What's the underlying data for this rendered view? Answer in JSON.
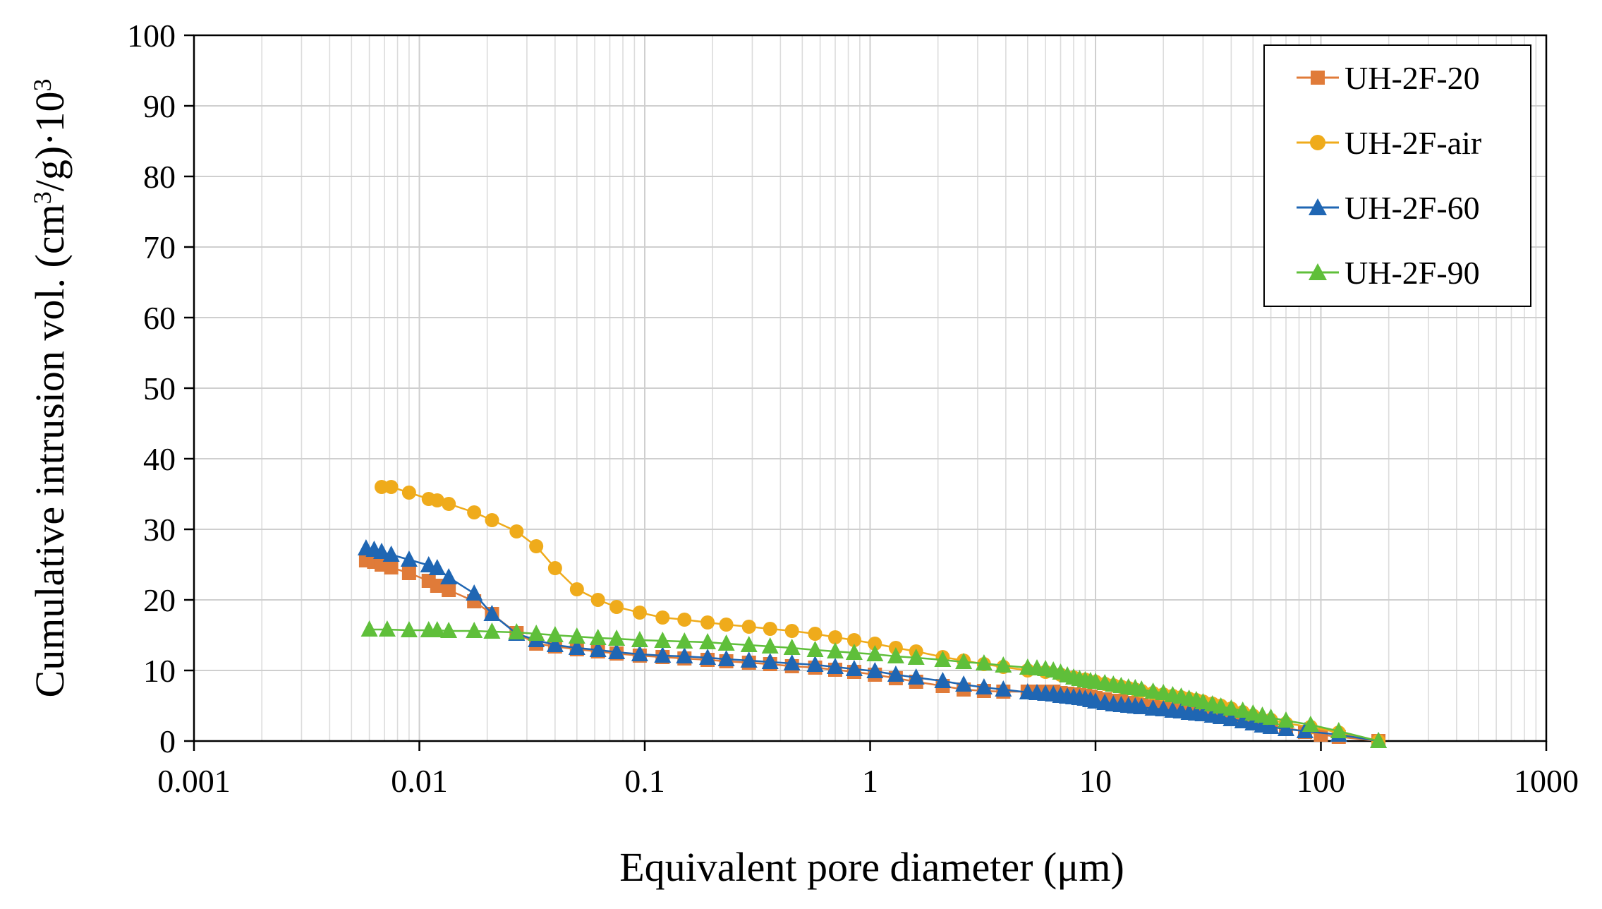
{
  "chart_data": {
    "type": "line",
    "title": "",
    "xlabel": "Equivalent pore diameter (μm)",
    "ylabel_main": "Cumulative intrusion vol. (cm",
    "ylabel_sup": "3",
    "ylabel_mid": "/g)·10",
    "ylabel_sup2": "3",
    "xscale": "log",
    "xlim": [
      0.001,
      1000
    ],
    "ylim": [
      0,
      100
    ],
    "x_ticks": [
      0.001,
      0.01,
      0.1,
      1,
      10,
      100,
      1000
    ],
    "x_tick_labels": [
      "0.001",
      "0.01",
      "0.1",
      "1",
      "10",
      "100",
      "1000"
    ],
    "y_ticks": [
      0,
      10,
      20,
      30,
      40,
      50,
      60,
      70,
      80,
      90,
      100
    ],
    "y_tick_labels": [
      "0",
      "10",
      "20",
      "30",
      "40",
      "50",
      "60",
      "70",
      "80",
      "90",
      "100"
    ],
    "grid": true,
    "legend_position": "top-right",
    "series": [
      {
        "name": "UH-2F-20",
        "color": "#e07b39",
        "marker": "square",
        "x": [
          0.0058,
          0.0063,
          0.0068,
          0.0075,
          0.009,
          0.011,
          0.012,
          0.0135,
          0.0175,
          0.021,
          0.027,
          0.033,
          0.04,
          0.05,
          0.062,
          0.075,
          0.095,
          0.12,
          0.15,
          0.19,
          0.23,
          0.29,
          0.36,
          0.45,
          0.57,
          0.7,
          0.85,
          1.05,
          1.3,
          1.6,
          2.1,
          2.6,
          3.2,
          3.9,
          5.0,
          5.5,
          6.0,
          6.5,
          7.0,
          7.5,
          8.0,
          8.5,
          9.0,
          9.5,
          10.0,
          11.0,
          12.0,
          13.0,
          14.0,
          15.0,
          16.0,
          18.0,
          20.0,
          22.0,
          24.0,
          26.0,
          28.0,
          30.0,
          33.0,
          36.0,
          40.0,
          45.0,
          50.0,
          55.0,
          60.0,
          70.0,
          85.0,
          100.0,
          120.0,
          180.0
        ],
        "y": [
          25.6,
          25.4,
          25.0,
          24.6,
          23.8,
          22.7,
          22.0,
          21.4,
          19.8,
          18.0,
          15.3,
          13.8,
          13.4,
          13.0,
          12.7,
          12.4,
          12.1,
          11.9,
          11.7,
          11.5,
          11.3,
          11.1,
          10.9,
          10.6,
          10.4,
          10.1,
          9.8,
          9.4,
          8.9,
          8.4,
          7.8,
          7.3,
          7.1,
          7.0,
          7.0,
          7.0,
          7.0,
          7.0,
          6.8,
          6.7,
          6.6,
          6.5,
          6.4,
          6.3,
          6.1,
          5.9,
          5.7,
          5.6,
          5.4,
          5.3,
          5.1,
          4.9,
          4.7,
          4.6,
          4.4,
          4.3,
          4.2,
          4.0,
          3.9,
          3.7,
          3.5,
          3.2,
          2.9,
          2.6,
          2.3,
          1.9,
          1.3,
          0.9,
          0.6,
          0.0
        ]
      },
      {
        "name": "UH-2F-air",
        "color": "#efab1b",
        "marker": "circle",
        "x": [
          0.0068,
          0.0075,
          0.009,
          0.011,
          0.012,
          0.0135,
          0.0175,
          0.021,
          0.027,
          0.033,
          0.04,
          0.05,
          0.062,
          0.075,
          0.095,
          0.12,
          0.15,
          0.19,
          0.23,
          0.29,
          0.36,
          0.45,
          0.57,
          0.7,
          0.85,
          1.05,
          1.3,
          1.6,
          2.1,
          2.6,
          3.2,
          3.9,
          5.0,
          6.0,
          7.0,
          8.0,
          9.0,
          10.0,
          11.0,
          12.0,
          13.0,
          14.0,
          15.0,
          16.0,
          18.0,
          20.0,
          22.0,
          24.0,
          26.0,
          28.0,
          30.0,
          33.0,
          36.0,
          40.0,
          45.0,
          50.0,
          60.0,
          70.0,
          90.0,
          120.0,
          180.0
        ],
        "y": [
          36.0,
          36.0,
          35.2,
          34.3,
          34.1,
          33.6,
          32.4,
          31.3,
          29.7,
          27.6,
          24.5,
          21.5,
          20.0,
          19.0,
          18.2,
          17.5,
          17.2,
          16.8,
          16.5,
          16.2,
          15.9,
          15.6,
          15.2,
          14.7,
          14.3,
          13.8,
          13.2,
          12.7,
          11.9,
          11.4,
          10.9,
          10.5,
          10.0,
          9.8,
          9.4,
          9.0,
          8.7,
          8.4,
          8.1,
          7.9,
          7.7,
          7.5,
          7.3,
          7.1,
          6.8,
          6.6,
          6.4,
          6.2,
          6.0,
          5.8,
          5.6,
          5.3,
          5.0,
          4.6,
          4.1,
          3.6,
          3.0,
          2.5,
          2.0,
          1.2,
          0.0
        ]
      },
      {
        "name": "UH-2F-60",
        "color": "#1f66b3",
        "marker": "triangle",
        "x": [
          0.0058,
          0.0063,
          0.0068,
          0.0075,
          0.009,
          0.011,
          0.012,
          0.0135,
          0.0175,
          0.021,
          0.027,
          0.033,
          0.04,
          0.05,
          0.062,
          0.075,
          0.095,
          0.12,
          0.15,
          0.19,
          0.23,
          0.29,
          0.36,
          0.45,
          0.57,
          0.7,
          0.85,
          1.05,
          1.3,
          1.6,
          2.1,
          2.6,
          3.2,
          3.9,
          5.0,
          5.5,
          6.0,
          6.5,
          7.0,
          7.5,
          8.0,
          8.5,
          9.0,
          9.5,
          10.0,
          11.0,
          12.0,
          13.0,
          14.0,
          15.0,
          16.0,
          18.0,
          20.0,
          22.0,
          24.0,
          26.0,
          28.0,
          30.0,
          33.0,
          36.0,
          40.0,
          45.0,
          50.0,
          55.0,
          60.0,
          70.0,
          85.0,
          120.0,
          180.0
        ],
        "y": [
          27.3,
          27.1,
          26.8,
          26.4,
          25.7,
          24.9,
          24.5,
          23.2,
          20.9,
          18.0,
          15.2,
          14.3,
          13.6,
          13.2,
          12.9,
          12.6,
          12.3,
          12.1,
          12.0,
          11.8,
          11.6,
          11.4,
          11.2,
          11.0,
          10.8,
          10.5,
          10.2,
          9.9,
          9.4,
          9.0,
          8.5,
          8.0,
          7.6,
          7.3,
          6.9,
          6.8,
          6.7,
          6.6,
          6.4,
          6.3,
          6.2,
          6.1,
          6.0,
          5.8,
          5.6,
          5.4,
          5.2,
          5.1,
          5.0,
          4.9,
          4.8,
          4.6,
          4.5,
          4.3,
          4.2,
          4.0,
          3.9,
          3.8,
          3.6,
          3.4,
          3.1,
          2.8,
          2.5,
          2.2,
          2.0,
          1.7,
          1.4,
          0.9,
          0.0
        ]
      },
      {
        "name": "UH-2F-90",
        "color": "#5fbf3a",
        "marker": "triangle",
        "x": [
          0.006,
          0.0072,
          0.009,
          0.011,
          0.012,
          0.0135,
          0.0175,
          0.021,
          0.027,
          0.033,
          0.04,
          0.05,
          0.062,
          0.075,
          0.095,
          0.12,
          0.15,
          0.19,
          0.23,
          0.29,
          0.36,
          0.45,
          0.57,
          0.7,
          0.85,
          1.05,
          1.3,
          1.6,
          2.1,
          2.6,
          3.2,
          3.9,
          5.0,
          5.5,
          6.0,
          6.5,
          7.0,
          7.5,
          8.0,
          8.5,
          9.0,
          9.5,
          10.0,
          11.0,
          12.0,
          13.0,
          14.0,
          15.0,
          16.0,
          18.0,
          20.0,
          22.0,
          24.0,
          26.0,
          28.0,
          30.0,
          33.0,
          36.0,
          40.0,
          45.0,
          50.0,
          55.0,
          60.0,
          70.0,
          90.0,
          120.0,
          180.0
        ],
        "y": [
          15.8,
          15.8,
          15.7,
          15.7,
          15.7,
          15.6,
          15.6,
          15.5,
          15.4,
          15.2,
          15.0,
          14.8,
          14.6,
          14.5,
          14.3,
          14.2,
          14.1,
          14.0,
          13.8,
          13.6,
          13.4,
          13.2,
          12.9,
          12.7,
          12.5,
          12.3,
          12.0,
          11.8,
          11.5,
          11.2,
          11.0,
          10.7,
          10.4,
          10.3,
          10.2,
          10.0,
          9.7,
          9.3,
          9.0,
          8.8,
          8.6,
          8.5,
          8.4,
          8.2,
          8.0,
          7.8,
          7.6,
          7.5,
          7.3,
          7.0,
          6.8,
          6.5,
          6.3,
          6.0,
          5.8,
          5.5,
          5.2,
          4.9,
          4.6,
          4.3,
          3.9,
          3.6,
          3.3,
          2.9,
          2.3,
          1.4,
          0.0
        ]
      }
    ]
  }
}
